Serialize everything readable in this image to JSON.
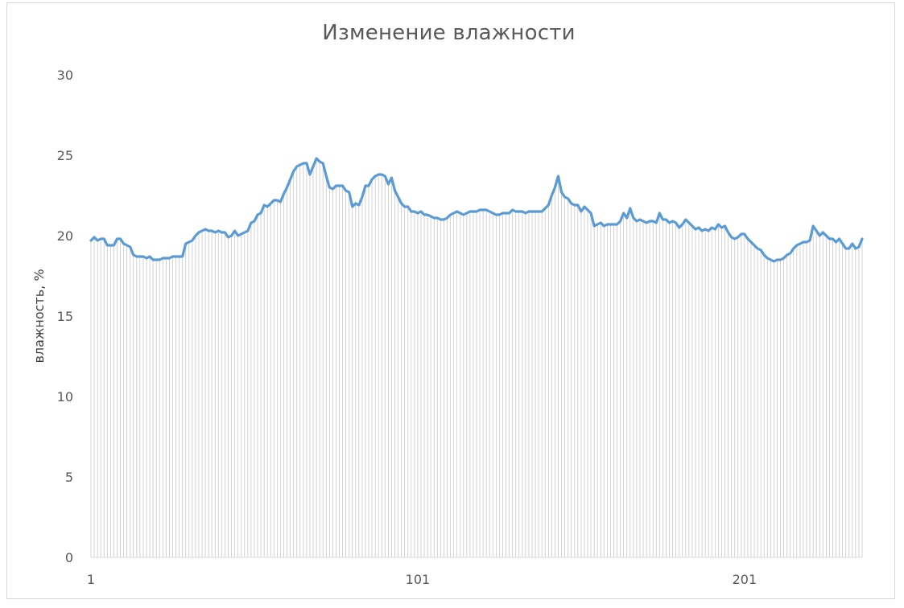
{
  "chart_data": {
    "type": "line",
    "title": "Изменение влажности",
    "ylabel": "влажность, %",
    "xlabel": "",
    "ylim": [
      0,
      30
    ],
    "y_ticks": [
      "0",
      "5",
      "10",
      "15",
      "20",
      "25",
      "30"
    ],
    "x_ticks": [
      "1",
      "101",
      "201"
    ],
    "x_tick_values": [
      1,
      101,
      201
    ],
    "grid": false,
    "legend": "none",
    "colors": {
      "line": "#5b9bd5",
      "drop_lines": "#c9c9c9",
      "axis": "#d9d9d9",
      "text": "#595959"
    },
    "series": [
      {
        "values": [
          19.7,
          19.9,
          19.7,
          19.8,
          19.8,
          19.4,
          19.4,
          19.4,
          19.8,
          19.8,
          19.5,
          19.4,
          19.3,
          18.8,
          18.7,
          18.7,
          18.7,
          18.6,
          18.7,
          18.5,
          18.5,
          18.5,
          18.6,
          18.6,
          18.6,
          18.7,
          18.7,
          18.7,
          18.7,
          19.5,
          19.6,
          19.7,
          20.0,
          20.2,
          20.3,
          20.4,
          20.3,
          20.3,
          20.2,
          20.3,
          20.2,
          20.2,
          19.9,
          20.0,
          20.3,
          20.0,
          20.1,
          20.2,
          20.3,
          20.8,
          20.9,
          21.3,
          21.4,
          21.9,
          21.8,
          22.0,
          22.2,
          22.2,
          22.1,
          22.6,
          23.0,
          23.5,
          24.0,
          24.3,
          24.4,
          24.5,
          24.5,
          23.8,
          24.3,
          24.8,
          24.6,
          24.5,
          23.7,
          23.0,
          22.9,
          23.1,
          23.1,
          23.1,
          22.8,
          22.7,
          21.8,
          22.0,
          21.9,
          22.4,
          23.1,
          23.1,
          23.5,
          23.7,
          23.8,
          23.8,
          23.7,
          23.2,
          23.6,
          22.8,
          22.4,
          22.0,
          21.8,
          21.8,
          21.5,
          21.5,
          21.4,
          21.5,
          21.3,
          21.3,
          21.2,
          21.1,
          21.1,
          21.0,
          21.0,
          21.1,
          21.3,
          21.4,
          21.5,
          21.4,
          21.3,
          21.4,
          21.5,
          21.5,
          21.5,
          21.6,
          21.6,
          21.6,
          21.5,
          21.4,
          21.3,
          21.3,
          21.4,
          21.4,
          21.4,
          21.6,
          21.5,
          21.5,
          21.5,
          21.4,
          21.5,
          21.5,
          21.5,
          21.5,
          21.5,
          21.7,
          21.9,
          22.5,
          23.0,
          23.7,
          22.7,
          22.4,
          22.3,
          22.0,
          21.9,
          21.9,
          21.5,
          21.8,
          21.6,
          21.4,
          20.6,
          20.7,
          20.8,
          20.6,
          20.7,
          20.7,
          20.7,
          20.7,
          20.9,
          21.4,
          21.1,
          21.7,
          21.1,
          20.9,
          21.0,
          20.9,
          20.8,
          20.9,
          20.9,
          20.8,
          21.4,
          21.0,
          21.0,
          20.8,
          20.9,
          20.8,
          20.5,
          20.7,
          21.0,
          20.8,
          20.6,
          20.4,
          20.5,
          20.3,
          20.4,
          20.3,
          20.5,
          20.4,
          20.7,
          20.5,
          20.6,
          20.2,
          19.9,
          19.8,
          19.9,
          20.1,
          20.1,
          19.8,
          19.6,
          19.4,
          19.2,
          19.1,
          18.8,
          18.6,
          18.5,
          18.4,
          18.5,
          18.5,
          18.6,
          18.8,
          18.9,
          19.2,
          19.4,
          19.5,
          19.6,
          19.6,
          19.7,
          20.6,
          20.3,
          20.0,
          20.2,
          20.0,
          19.8,
          19.8,
          19.6,
          19.8,
          19.5,
          19.2,
          19.2,
          19.5,
          19.2,
          19.3,
          19.8
        ]
      }
    ]
  }
}
